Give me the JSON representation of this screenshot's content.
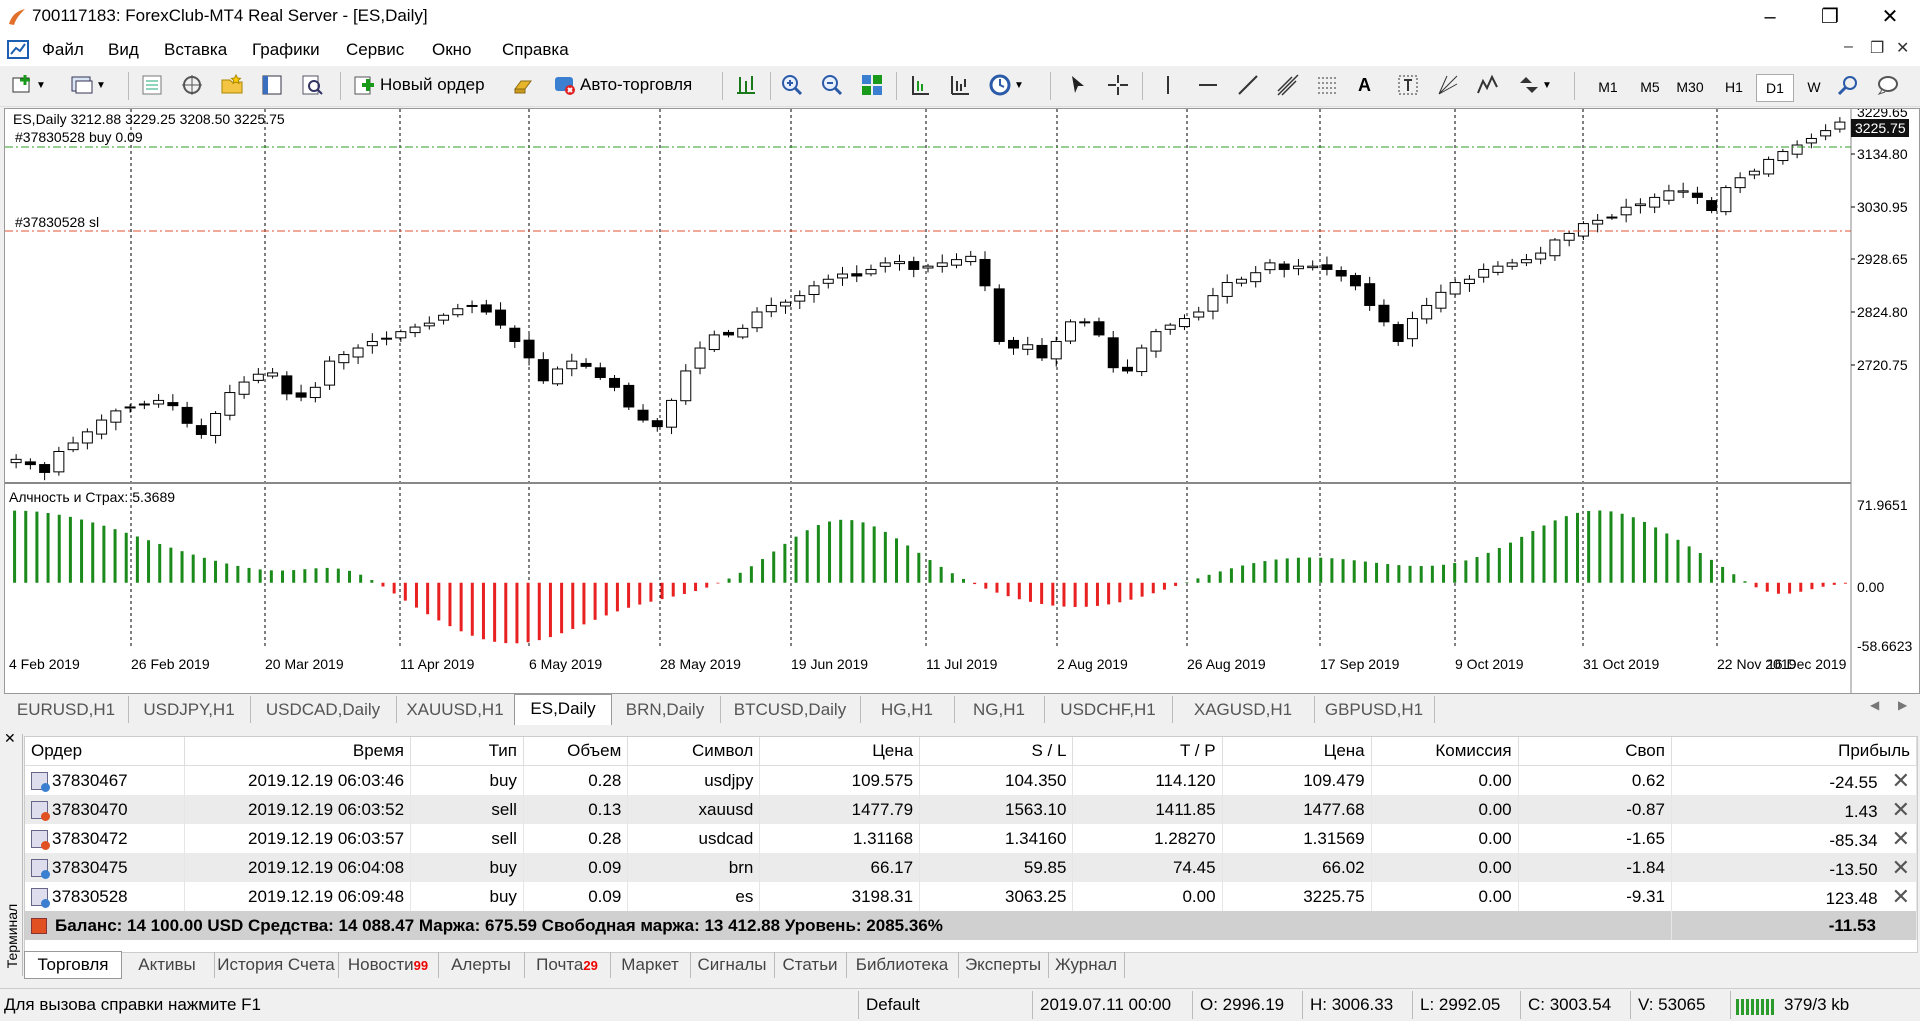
{
  "window": {
    "title": "700117183: ForexClub-MT4 Real Server - [ES,Daily]"
  },
  "menu": [
    "Файл",
    "Вид",
    "Вставка",
    "Графики",
    "Сервис",
    "Окно",
    "Справка"
  ],
  "toolbar": {
    "new_order": "Новый ордер",
    "auto_trading": "Авто-торговля",
    "timeframes": [
      "M1",
      "M5",
      "M30",
      "H1",
      "D1",
      "W"
    ],
    "active_timeframe": "D1"
  },
  "chart": {
    "header": "ES,Daily  3212.88 3229.25 3208.50 3225.75",
    "buy_label": "#37830528 buy 0.09",
    "sl_label": "#37830528 sl",
    "price_ticks": [
      "3225.75",
      "3134.80",
      "3030.95",
      "2928.65",
      "2824.80",
      "2720.75"
    ],
    "current_price": "3225.75",
    "top_partial_tick": "3229.65",
    "indicator_label": "Алчность и Страх: 5.3689",
    "indicator_ticks": [
      "71.9651",
      "0.00",
      "-58.6623"
    ],
    "date_ticks": [
      "4 Feb 2019",
      "26 Feb 2019",
      "20 Mar 2019",
      "11 Apr 2019",
      "6 May 2019",
      "28 May 2019",
      "19 Jun 2019",
      "11 Jul 2019",
      "2 Aug 2019",
      "26 Aug 2019",
      "17 Sep 2019",
      "9 Oct 2019",
      "31 Oct 2019",
      "22 Nov 2019",
      "16 Dec 2019"
    ],
    "colors": {
      "up_hist": "#1a8a1a",
      "down_hist": "#e82020",
      "buy_line": "#2a9a2a",
      "sl_line": "#e05030"
    }
  },
  "chart_data": {
    "type": "candlestick",
    "title": "ES,Daily",
    "ylim": [
      2680,
      3245
    ],
    "close_path": [
      2710,
      2702,
      2690,
      2722,
      2735,
      2752,
      2770,
      2784,
      2790,
      2794,
      2800,
      2792,
      2765,
      2748,
      2780,
      2812,
      2828,
      2840,
      2842,
      2810,
      2805,
      2820,
      2860,
      2870,
      2880,
      2890,
      2895,
      2905,
      2912,
      2918,
      2930,
      2940,
      2945,
      2935,
      2915,
      2890,
      2865,
      2830,
      2848,
      2860,
      2852,
      2835,
      2820,
      2790,
      2770,
      2760,
      2800,
      2845,
      2880,
      2900,
      2900,
      2910,
      2935,
      2945,
      2950,
      2960,
      2975,
      2985,
      2993,
      2990,
      3000,
      3010,
      3012,
      3000,
      3005,
      3010,
      3015,
      3020,
      2975,
      2890,
      2880,
      2885,
      2865,
      2890,
      2920,
      2920,
      2900,
      2850,
      2845,
      2880,
      2905,
      2915,
      2925,
      2935,
      2960,
      2980,
      2985,
      2995,
      3010,
      3000,
      3005,
      3005,
      3000,
      2990,
      2975,
      2945,
      2920,
      2890,
      2925,
      2945,
      2965,
      2980,
      2985,
      3000,
      3005,
      3010,
      3015,
      3025,
      3045,
      3055,
      3070,
      3075,
      3080,
      3095,
      3100,
      3110,
      3120,
      3120,
      3110,
      3090,
      3125,
      3140,
      3150,
      3168,
      3180,
      3190,
      3200,
      3212,
      3225
    ]
  },
  "symbol_tabs": [
    "EURUSD,H1",
    "USDJPY,H1",
    "USDCAD,Daily",
    "XAUUSD,H1",
    "ES,Daily",
    "BRN,Daily",
    "BTCUSD,Daily",
    "HG,H1",
    "NG,H1",
    "USDCHF,H1",
    "XAGUSD,H1",
    "GBPUSD,H1"
  ],
  "active_symbol_tab": "ES,Daily",
  "terminal": {
    "side_label": "Терминал",
    "columns": [
      "Ордер",
      "Время",
      "Тип",
      "Объем",
      "Символ",
      "Цена",
      "S / L",
      "T / P",
      "Цена",
      "Комиссия",
      "Своп",
      "Прибыль"
    ],
    "rows": [
      {
        "order": "37830467",
        "time": "2019.12.19 06:03:46",
        "type": "buy",
        "volume": "0.28",
        "symbol": "usdjpy",
        "price": "109.575",
        "sl": "104.350",
        "tp": "114.120",
        "cur": "109.479",
        "commission": "0.00",
        "swap": "0.62",
        "profit": "-24.55"
      },
      {
        "order": "37830470",
        "time": "2019.12.19 06:03:52",
        "type": "sell",
        "volume": "0.13",
        "symbol": "xauusd",
        "price": "1477.79",
        "sl": "1563.10",
        "tp": "1411.85",
        "cur": "1477.68",
        "commission": "0.00",
        "swap": "-0.87",
        "profit": "1.43"
      },
      {
        "order": "37830472",
        "time": "2019.12.19 06:03:57",
        "type": "sell",
        "volume": "0.28",
        "symbol": "usdcad",
        "price": "1.31168",
        "sl": "1.34160",
        "tp": "1.28270",
        "cur": "1.31569",
        "commission": "0.00",
        "swap": "-1.65",
        "profit": "-85.34"
      },
      {
        "order": "37830475",
        "time": "2019.12.19 06:04:08",
        "type": "buy",
        "volume": "0.09",
        "symbol": "brn",
        "price": "66.17",
        "sl": "59.85",
        "tp": "74.45",
        "cur": "66.02",
        "commission": "0.00",
        "swap": "-1.84",
        "profit": "-13.50"
      },
      {
        "order": "37830528",
        "time": "2019.12.19 06:09:48",
        "type": "buy",
        "volume": "0.09",
        "symbol": "es",
        "price": "3198.31",
        "sl": "3063.25",
        "tp": "0.00",
        "cur": "3225.75",
        "commission": "0.00",
        "swap": "-9.31",
        "profit": "123.48"
      }
    ],
    "summary": "Баланс: 14 100.00 USD  Средства: 14 088.47  Маржа: 675.59  Свободная маржа: 13 412.88  Уровень: 2085.36%",
    "summary_profit": "-11.53",
    "tabs": [
      {
        "label": "Торговля",
        "badge": ""
      },
      {
        "label": "Активы",
        "badge": ""
      },
      {
        "label": "История Счета",
        "badge": ""
      },
      {
        "label": "Новости",
        "badge": "99"
      },
      {
        "label": "Алерты",
        "badge": ""
      },
      {
        "label": "Почта",
        "badge": "29"
      },
      {
        "label": "Маркет",
        "badge": ""
      },
      {
        "label": "Сигналы",
        "badge": ""
      },
      {
        "label": "Статьи",
        "badge": ""
      },
      {
        "label": "Библиотека",
        "badge": ""
      },
      {
        "label": "Эксперты",
        "badge": ""
      },
      {
        "label": "Журнал",
        "badge": ""
      }
    ]
  },
  "status": {
    "help": "Для вызова справки нажмите F1",
    "profile": "Default",
    "datetime": "2019.07.11 00:00",
    "open": "O: 2996.19",
    "high": "H: 3006.33",
    "low": "L: 2992.05",
    "close": "C: 3003.54",
    "volume": "V: 53065",
    "traffic": "379/3 kb"
  }
}
